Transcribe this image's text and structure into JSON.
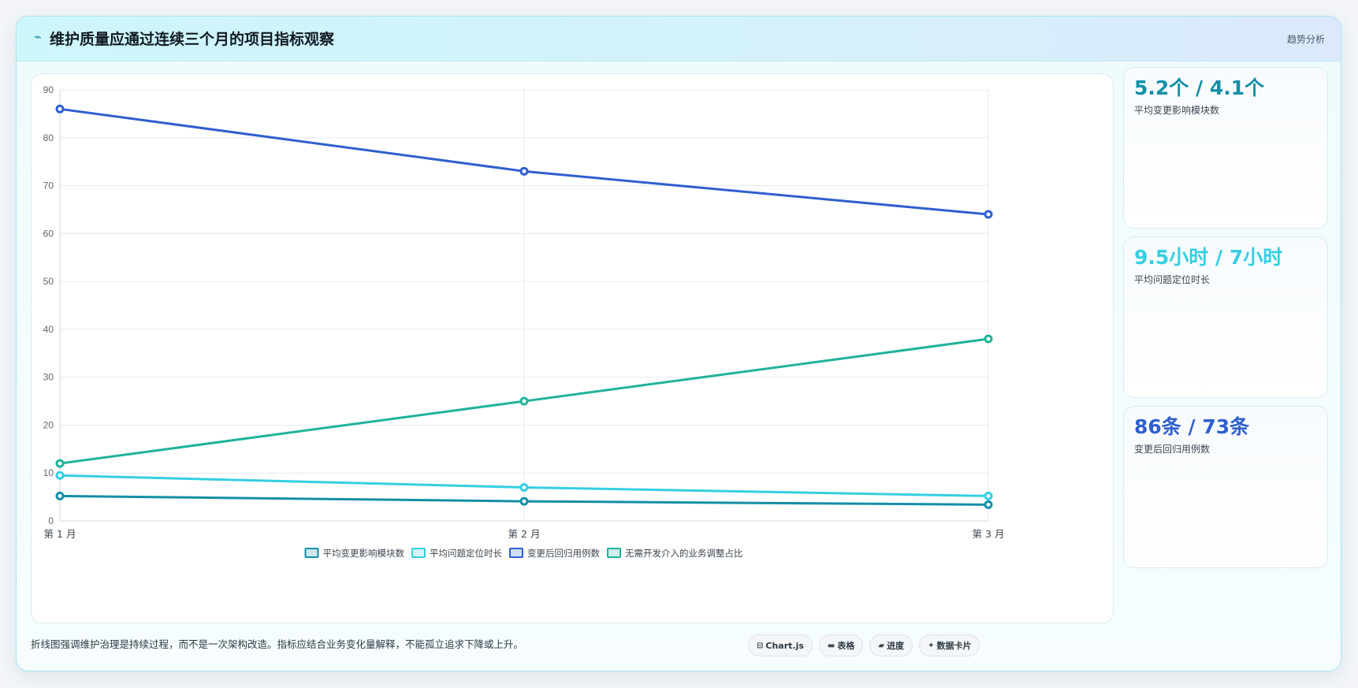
{
  "header": {
    "icon": "⌁",
    "title": "维护质量应通过连续三个月的项目指标观察",
    "tag": "趋势分析"
  },
  "chart_data": {
    "type": "line",
    "categories": [
      "第 1 月",
      "第 2 月",
      "第 3 月"
    ],
    "ylim": [
      0,
      90
    ],
    "yticks": [
      0,
      10,
      20,
      30,
      40,
      50,
      60,
      70,
      80,
      90
    ],
    "grid": true,
    "legend_position": "bottom",
    "series": [
      {
        "name": "平均变更影响模块数",
        "values": [
          5.2,
          4.1,
          3.4
        ],
        "color": "#138fa6"
      },
      {
        "name": "平均问题定位时长",
        "values": [
          9.5,
          7,
          5.2
        ],
        "color": "#35cfe2"
      },
      {
        "name": "变更后回归用例数",
        "values": [
          86,
          73,
          64
        ],
        "color": "#2f5fcf"
      },
      {
        "name": "无需开发介入的业务调整占比",
        "values": [
          12,
          25,
          38
        ],
        "color": "#1fb39a"
      }
    ]
  },
  "stats": [
    {
      "value": "5.2个 / 4.1个",
      "label": "平均变更影响模块数",
      "color": "#138fa6"
    },
    {
      "value": "9.5小时 / 7小时",
      "label": "平均问题定位时长",
      "color": "#35cfe2"
    },
    {
      "value": "86条 / 73条",
      "label": "变更后回归用例数",
      "color": "#2f5fcf"
    }
  ],
  "footer": {
    "note": "折线图强调维护治理是持续过程，而不是一次架构改造。指标应结合业务变化量解释，不能孤立追求下降或上升。"
  },
  "toolbar": {
    "buttons": [
      {
        "icon": "⊟",
        "label": "Chart.js"
      },
      {
        "icon": "▬",
        "label": "表格"
      },
      {
        "icon": "▰",
        "label": "进度"
      },
      {
        "icon": "✦",
        "label": "数据卡片"
      }
    ]
  }
}
